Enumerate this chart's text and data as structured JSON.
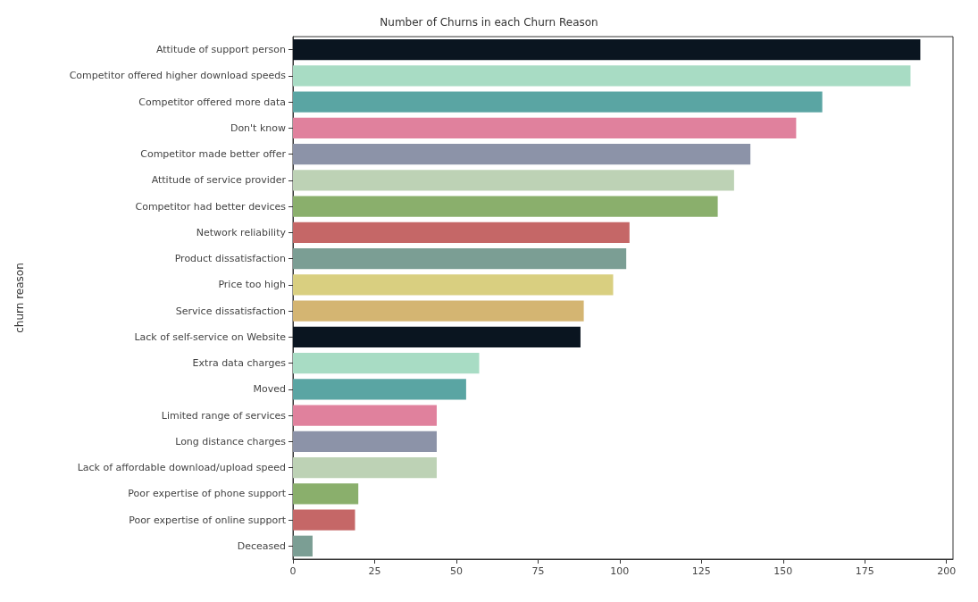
{
  "chart_data": {
    "type": "bar",
    "orientation": "horizontal",
    "title": "Number of Churns in each Churn Reason",
    "ylabel": "churn reason",
    "categories": [
      "Attitude of support person",
      "Competitor offered higher download speeds",
      "Competitor offered more data",
      "Don't know",
      "Competitor made better offer",
      "Attitude of service provider",
      "Competitor had better devices",
      "Network reliability",
      "Product dissatisfaction",
      "Price too high",
      "Service dissatisfaction",
      "Lack of self-service on Website",
      "Extra data charges",
      "Moved",
      "Limited range of services",
      "Long distance charges",
      "Lack of affordable download/upload speed",
      "Poor expertise of phone support",
      "Poor expertise of online support",
      "Deceased"
    ],
    "values": [
      192,
      189,
      162,
      154,
      140,
      135,
      130,
      103,
      102,
      98,
      89,
      88,
      57,
      53,
      44,
      44,
      44,
      20,
      19,
      6
    ],
    "colors": [
      "#0a1520",
      "#a8dcc4",
      "#5aa5a3",
      "#e0819d",
      "#8c93a8",
      "#bdd2b5",
      "#8aaf6c",
      "#c56767",
      "#7b9e94",
      "#d9cf80",
      "#d4b572",
      "#0a1520",
      "#a8dcc4",
      "#5aa5a3",
      "#e0819d",
      "#8c93a8",
      "#bdd2b5",
      "#8aaf6c",
      "#c56767",
      "#7b9e94"
    ],
    "xlim": [
      0,
      202
    ],
    "xticks": [
      0,
      25,
      50,
      75,
      100,
      125,
      150,
      175,
      200
    ],
    "grid": false
  }
}
